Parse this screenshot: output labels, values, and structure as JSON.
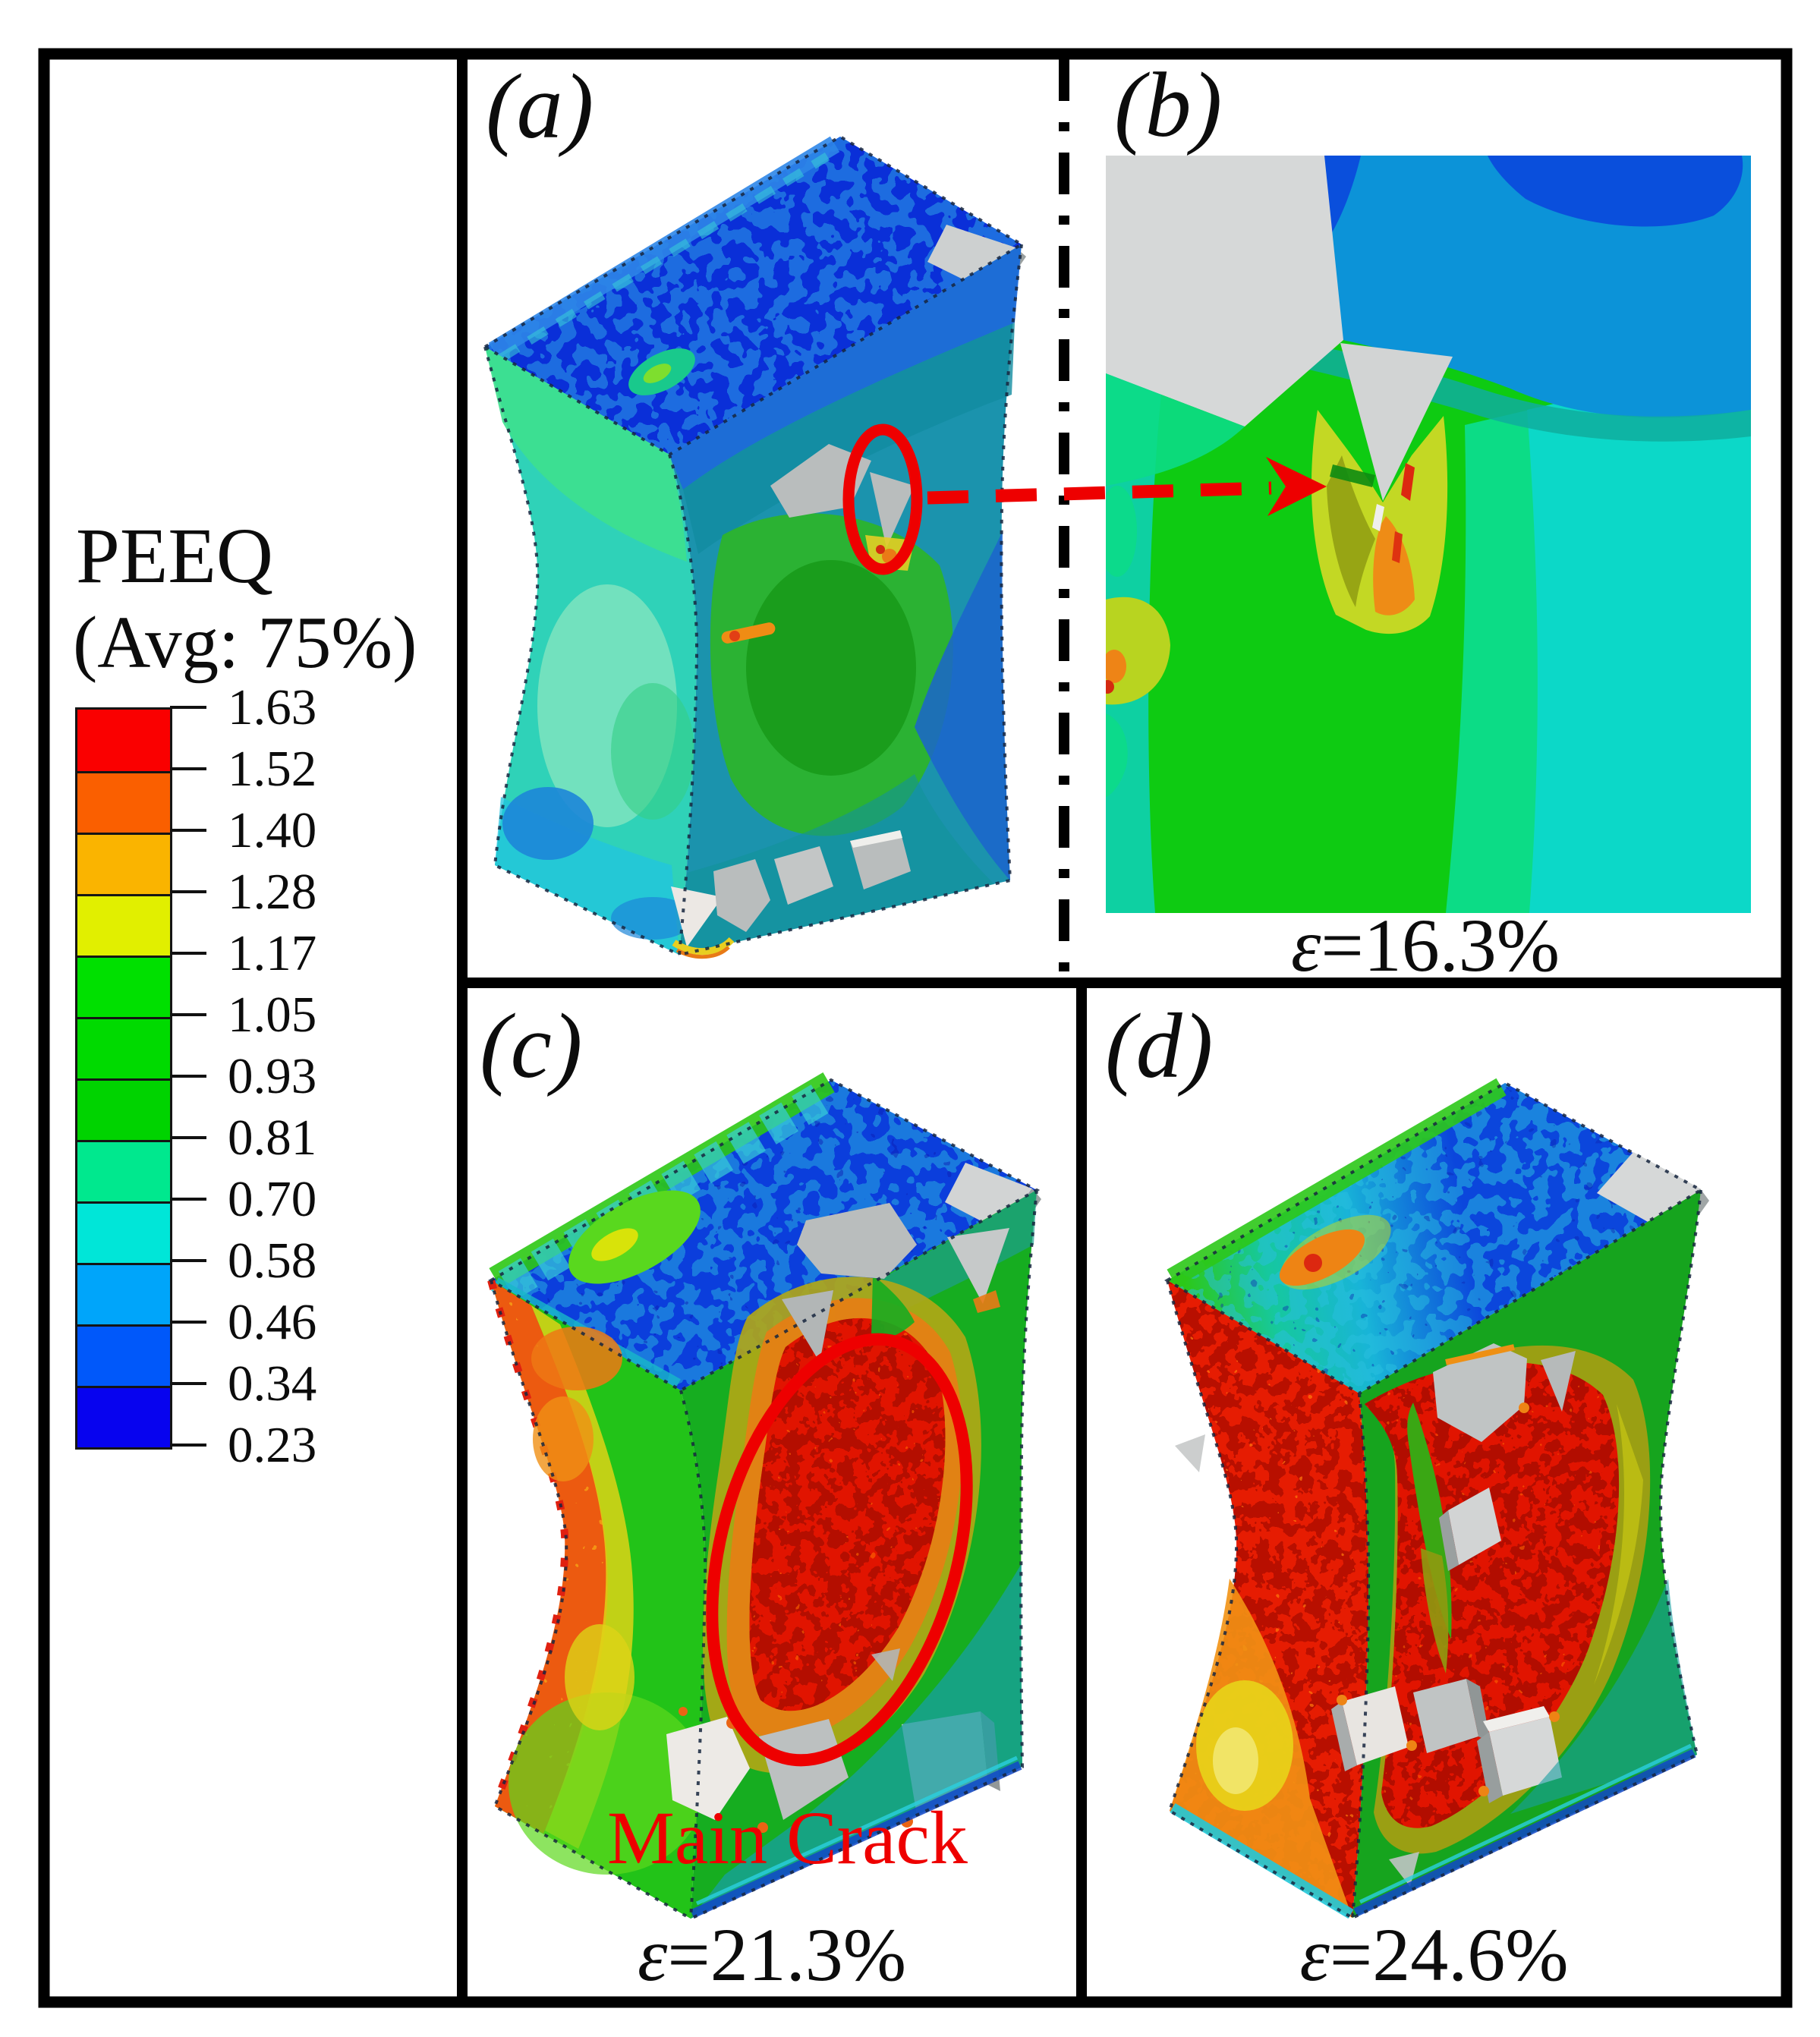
{
  "figure": {
    "legend": {
      "title": "PEEQ",
      "subtitle": "(Avg: 75%)",
      "tick_values": [
        "1.63",
        "1.52",
        "1.40",
        "1.28",
        "1.17",
        "1.05",
        "0.93",
        "0.81",
        "0.70",
        "0.58",
        "0.46",
        "0.34",
        "0.23"
      ],
      "band_colors": [
        "#fa0000",
        "#fa5f00",
        "#fab400",
        "#e1ef00",
        "#00e000",
        "#00da00",
        "#00d300",
        "#00e88e",
        "#00e6d8",
        "#00a5fa",
        "#0058fa",
        "#0703ef"
      ]
    },
    "panels": {
      "a": {
        "label": "(a)"
      },
      "b": {
        "label": "(b)",
        "caption_var": "ε",
        "caption_rest": "=16.3%"
      },
      "c": {
        "label": "(c)",
        "caption_var": "ε",
        "caption_rest": "=21.3%",
        "annotation": "Main Crack"
      },
      "d": {
        "label": "(d)",
        "caption_var": "ε",
        "caption_rest": "=24.6%"
      }
    },
    "annotation_color": "#ee0000",
    "particle_color": "#c0c4c4",
    "divider_color": "#000000"
  }
}
